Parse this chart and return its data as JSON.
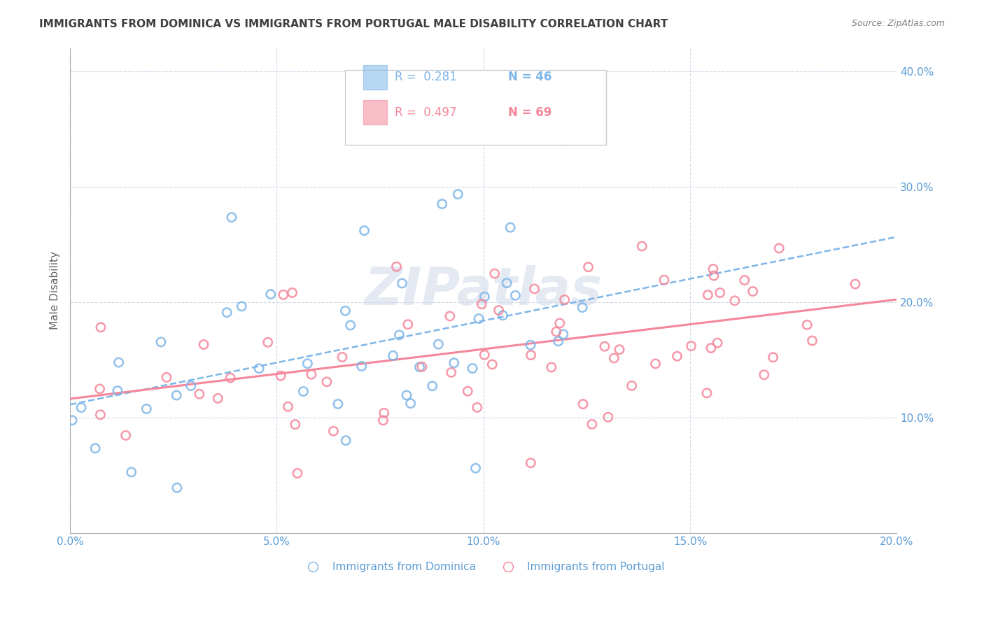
{
  "title": "IMMIGRANTS FROM DOMINICA VS IMMIGRANTS FROM PORTUGAL MALE DISABILITY CORRELATION CHART",
  "source": "Source: ZipAtlas.com",
  "ylabel": "Male Disability",
  "x_tick_labels": [
    "0.0%",
    "5.0%",
    "10.0%",
    "15.0%",
    "20.0%"
  ],
  "x_tick_values": [
    0.0,
    0.05,
    0.1,
    0.15,
    0.2
  ],
  "y_tick_labels": [
    "10.0%",
    "20.0%",
    "30.0%",
    "40.0%"
  ],
  "y_tick_values": [
    0.1,
    0.2,
    0.3,
    0.4
  ],
  "xlim": [
    0.0,
    0.2
  ],
  "ylim": [
    0.0,
    0.42
  ],
  "legend_r1": "R =  0.281",
  "legend_n1": "N = 46",
  "legend_r2": "R =  0.497",
  "legend_n2": "N = 69",
  "color_dominica": "#7EB6E8",
  "color_portugal": "#F4879A",
  "color_axis_labels": "#5B9BD5",
  "color_title": "#404040",
  "color_source": "#808080",
  "color_watermark": "#D0D8E8",
  "watermark_text": "ZIPatlas",
  "grid_color": "#D0D8E8",
  "background_color": "#FFFFFF"
}
